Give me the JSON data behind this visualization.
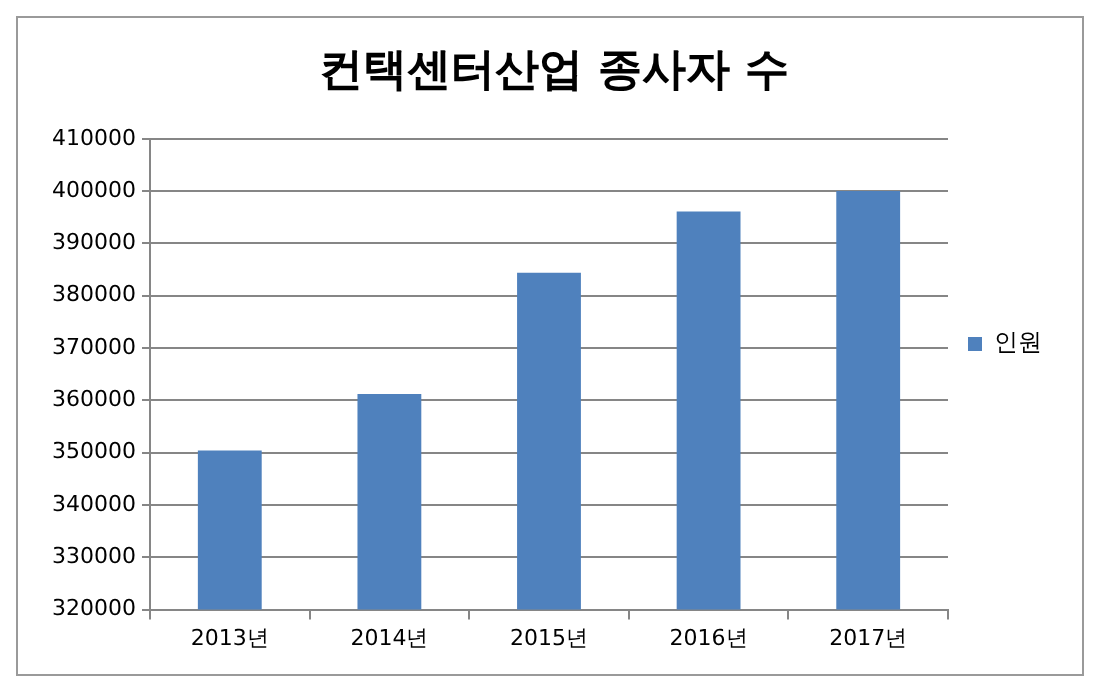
{
  "chart_data": {
    "type": "bar",
    "title": "컨택센터산업 종사자 수",
    "categories": [
      "2013년",
      "2014년",
      "2015년",
      "2016년",
      "2017년"
    ],
    "series": [
      {
        "name": "인원",
        "color": "#4f81bd",
        "values": [
          350400,
          361200,
          384400,
          396100,
          400000
        ]
      }
    ],
    "ylim": [
      320000,
      410000
    ],
    "yticks": [
      320000,
      330000,
      340000,
      350000,
      360000,
      370000,
      380000,
      390000,
      400000,
      410000
    ],
    "grid": "y",
    "legend": "right"
  }
}
